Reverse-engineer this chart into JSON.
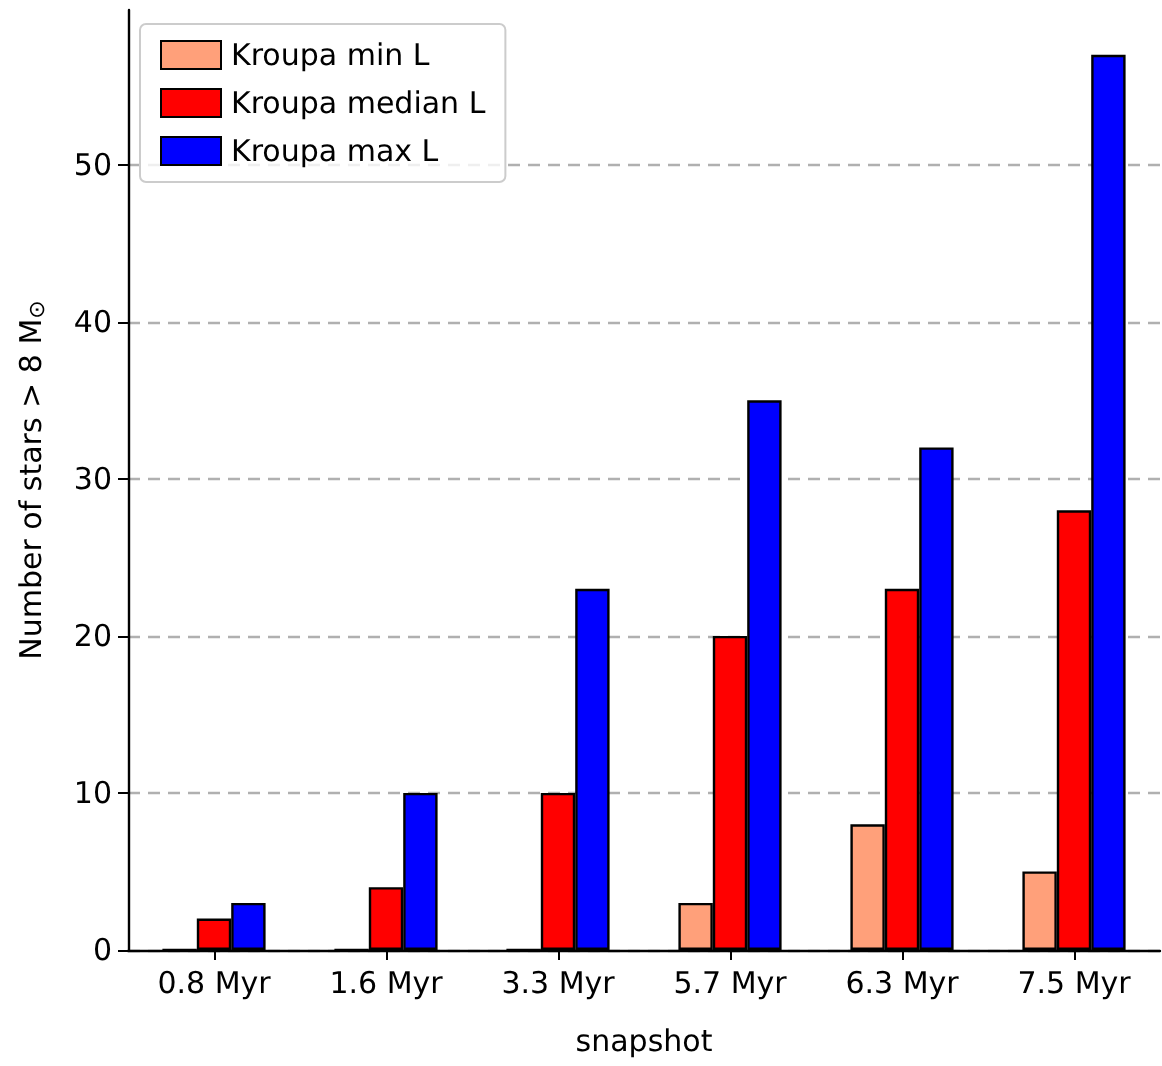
{
  "chart_data": {
    "type": "bar",
    "xlabel": "snapshot",
    "ylabel": "Number of stars > 8 M$_{⊙}$",
    "categories": [
      "0.8 Myr",
      "1.6 Myr",
      "3.3 Myr",
      "5.7 Myr",
      "6.3 Myr",
      "7.5 Myr"
    ],
    "series": [
      {
        "name": "Kroupa min L",
        "color": "#ffa07a",
        "values": [
          0,
          0,
          0,
          3,
          8,
          5
        ]
      },
      {
        "name": "Kroupa median L",
        "color": "#ff0000",
        "values": [
          2,
          4,
          10,
          20,
          23,
          28
        ]
      },
      {
        "name": "Kroupa max L",
        "color": "#0000ff",
        "values": [
          3,
          10,
          23,
          35,
          32,
          57
        ]
      }
    ],
    "ylim": [
      0,
      59.85
    ],
    "yticks": [
      0,
      10,
      20,
      30,
      40,
      50
    ],
    "grid": "y",
    "legend": "top left"
  }
}
